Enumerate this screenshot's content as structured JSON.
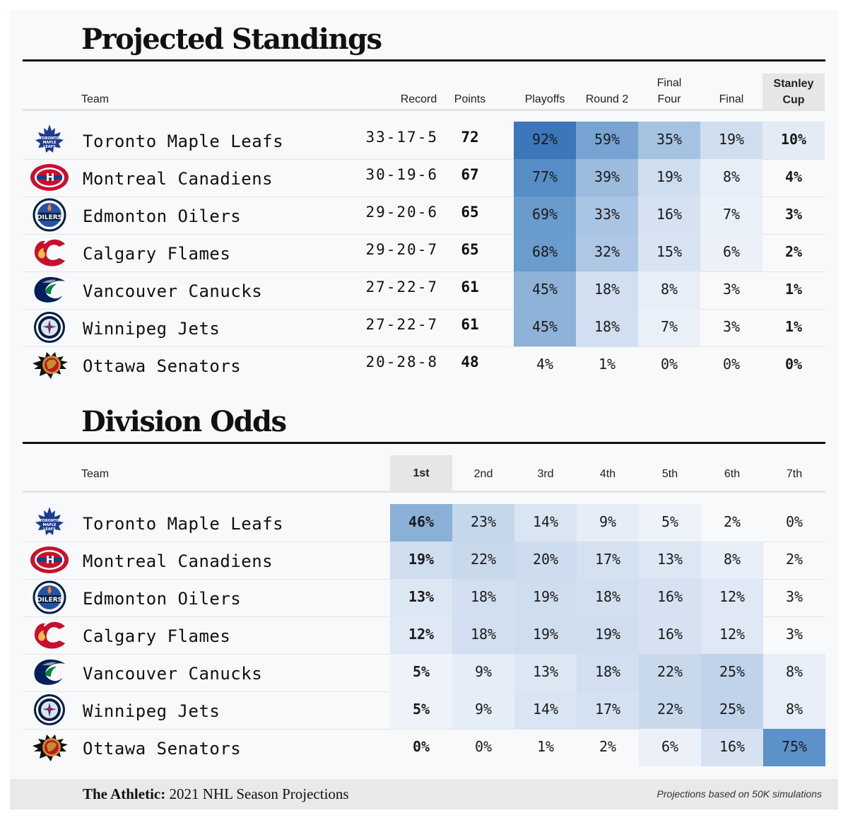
{
  "standings": {
    "title": "Projected Standings",
    "headers": {
      "team": "Team",
      "record": "Record",
      "points": "Points",
      "playoffs": "Playoffs",
      "round2": "Round 2",
      "final_four_1": "Final",
      "final_four_2": "Four",
      "final": "Final",
      "cup_1": "Stanley",
      "cup_2": "Cup"
    },
    "rows": [
      {
        "team": "Toronto Maple Leafs",
        "logo": "maple-leafs-logo",
        "record": "33-17-5",
        "points": "72",
        "playoffs": "92%",
        "round2": "59%",
        "final_four": "35%",
        "final": "19%",
        "cup": "10%"
      },
      {
        "team": "Montreal Canadiens",
        "logo": "canadiens-logo",
        "record": "30-19-6",
        "points": "67",
        "playoffs": "77%",
        "round2": "39%",
        "final_four": "19%",
        "final": "8%",
        "cup": "4%"
      },
      {
        "team": "Edmonton Oilers",
        "logo": "oilers-logo",
        "record": "29-20-6",
        "points": "65",
        "playoffs": "69%",
        "round2": "33%",
        "final_four": "16%",
        "final": "7%",
        "cup": "3%"
      },
      {
        "team": "Calgary Flames",
        "logo": "flames-logo",
        "record": "29-20-7",
        "points": "65",
        "playoffs": "68%",
        "round2": "32%",
        "final_four": "15%",
        "final": "6%",
        "cup": "2%"
      },
      {
        "team": "Vancouver Canucks",
        "logo": "canucks-logo",
        "record": "27-22-7",
        "points": "61",
        "playoffs": "45%",
        "round2": "18%",
        "final_four": "8%",
        "final": "3%",
        "cup": "1%"
      },
      {
        "team": "Winnipeg Jets",
        "logo": "jets-logo",
        "record": "27-22-7",
        "points": "61",
        "playoffs": "45%",
        "round2": "18%",
        "final_four": "7%",
        "final": "3%",
        "cup": "1%"
      },
      {
        "team": "Ottawa Senators",
        "logo": "senators-logo",
        "record": "20-28-8",
        "points": "48",
        "playoffs": "4%",
        "round2": "1%",
        "final_four": "0%",
        "final": "0%",
        "cup": "0%"
      }
    ]
  },
  "division": {
    "title": "Division Odds",
    "headers": {
      "team": "Team",
      "places": [
        "1st",
        "2nd",
        "3rd",
        "4th",
        "5th",
        "6th",
        "7th"
      ]
    },
    "rows": [
      {
        "team": "Toronto Maple Leafs",
        "logo": "maple-leafs-logo",
        "odds": [
          "46%",
          "23%",
          "14%",
          "9%",
          "5%",
          "2%",
          "0%"
        ]
      },
      {
        "team": "Montreal Canadiens",
        "logo": "canadiens-logo",
        "odds": [
          "19%",
          "22%",
          "20%",
          "17%",
          "13%",
          "8%",
          "2%"
        ]
      },
      {
        "team": "Edmonton Oilers",
        "logo": "oilers-logo",
        "odds": [
          "13%",
          "18%",
          "19%",
          "18%",
          "16%",
          "12%",
          "3%"
        ]
      },
      {
        "team": "Calgary Flames",
        "logo": "flames-logo",
        "odds": [
          "12%",
          "18%",
          "19%",
          "19%",
          "16%",
          "12%",
          "3%"
        ]
      },
      {
        "team": "Vancouver Canucks",
        "logo": "canucks-logo",
        "odds": [
          "5%",
          "9%",
          "13%",
          "18%",
          "22%",
          "25%",
          "8%"
        ]
      },
      {
        "team": "Winnipeg Jets",
        "logo": "jets-logo",
        "odds": [
          "5%",
          "9%",
          "14%",
          "17%",
          "22%",
          "25%",
          "8%"
        ]
      },
      {
        "team": "Ottawa Senators",
        "logo": "senators-logo",
        "odds": [
          "0%",
          "0%",
          "1%",
          "2%",
          "6%",
          "16%",
          "75%"
        ]
      }
    ]
  },
  "footer": {
    "brand": "The Athletic:",
    "title": " 2021 NHL Season Projections",
    "note": "Projections based on 50K simulations"
  },
  "colors": {
    "heat_dark": "#2f6fb5",
    "heat_light": "#eef3fa",
    "highlight_header": "#e6e6e6"
  },
  "chart_data": [
    {
      "type": "table",
      "title": "Projected Standings",
      "columns": [
        "Team",
        "Record",
        "Points",
        "Playoffs",
        "Round 2",
        "Final Four",
        "Final",
        "Stanley Cup"
      ],
      "rows": [
        [
          "Toronto Maple Leafs",
          "33-17-5",
          72,
          92,
          59,
          35,
          19,
          10
        ],
        [
          "Montreal Canadiens",
          "30-19-6",
          67,
          77,
          39,
          19,
          8,
          4
        ],
        [
          "Edmonton Oilers",
          "29-20-6",
          65,
          69,
          33,
          16,
          7,
          3
        ],
        [
          "Calgary Flames",
          "29-20-7",
          65,
          68,
          32,
          15,
          6,
          2
        ],
        [
          "Vancouver Canucks",
          "27-22-7",
          61,
          45,
          18,
          8,
          3,
          1
        ],
        [
          "Winnipeg Jets",
          "27-22-7",
          61,
          45,
          18,
          7,
          3,
          1
        ],
        [
          "Ottawa Senators",
          "20-28-8",
          48,
          4,
          1,
          0,
          0,
          0
        ]
      ]
    },
    {
      "type": "heatmap",
      "title": "Division Odds",
      "categories": [
        "1st",
        "2nd",
        "3rd",
        "4th",
        "5th",
        "6th",
        "7th"
      ],
      "series": [
        {
          "name": "Toronto Maple Leafs",
          "values": [
            46,
            23,
            14,
            9,
            5,
            2,
            0
          ]
        },
        {
          "name": "Montreal Canadiens",
          "values": [
            19,
            22,
            20,
            17,
            13,
            8,
            2
          ]
        },
        {
          "name": "Edmonton Oilers",
          "values": [
            13,
            18,
            19,
            18,
            16,
            12,
            3
          ]
        },
        {
          "name": "Calgary Flames",
          "values": [
            12,
            18,
            19,
            19,
            16,
            12,
            3
          ]
        },
        {
          "name": "Vancouver Canucks",
          "values": [
            5,
            9,
            13,
            18,
            22,
            25,
            8
          ]
        },
        {
          "name": "Winnipeg Jets",
          "values": [
            5,
            9,
            14,
            17,
            22,
            25,
            8
          ]
        },
        {
          "name": "Ottawa Senators",
          "values": [
            0,
            0,
            1,
            2,
            6,
            16,
            75
          ]
        }
      ]
    }
  ]
}
